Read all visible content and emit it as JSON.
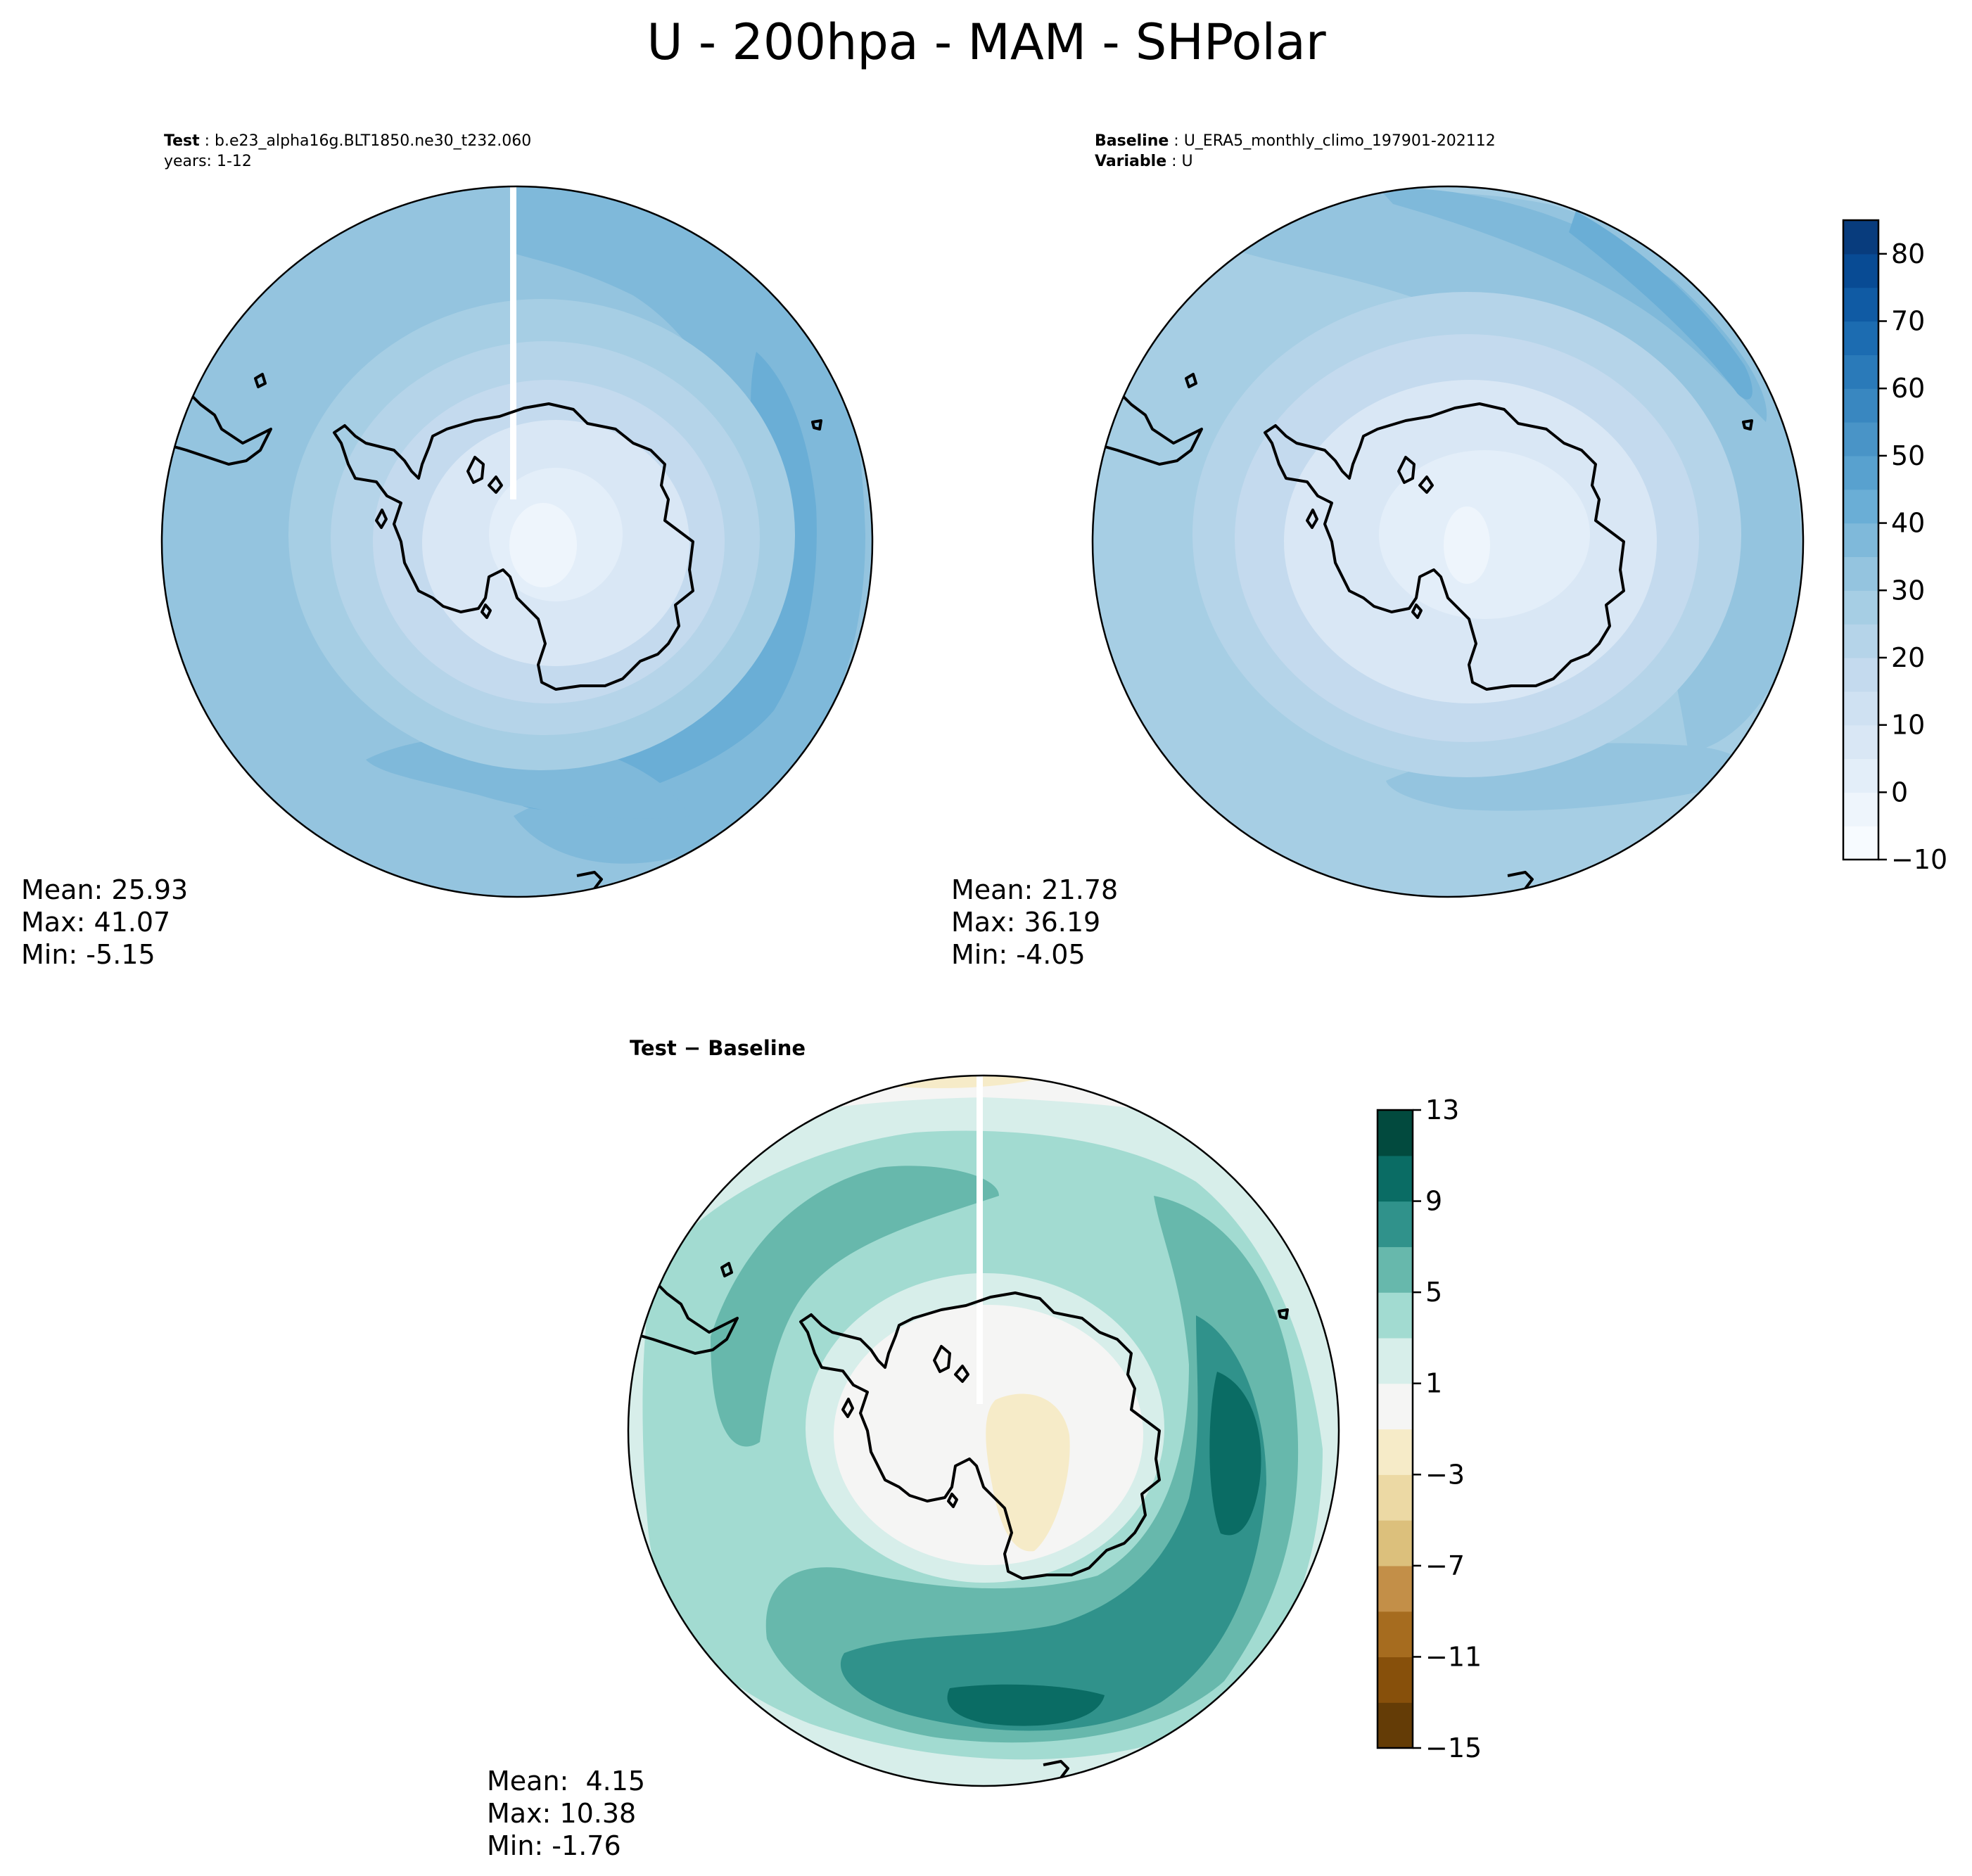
{
  "suptitle": "U - 200hpa - MAM - SHPolar",
  "test_panel": {
    "label_key": "Test",
    "case": "b.e23_alpha16g.BLT1850.ne30_t232.060",
    "years": "years: 1-12",
    "stats": {
      "mean": "Mean: 25.93",
      "max": "Max: 41.07",
      "min": "Min: -5.15"
    }
  },
  "baseline_panel": {
    "label_key": "Baseline",
    "case": "U_ERA5_monthly_climo_197901-202112",
    "variable_key": "Variable",
    "variable": "U",
    "stats": {
      "mean": "Mean: 21.78",
      "max": "Max: 36.19",
      "min": "Min: -4.05"
    }
  },
  "diff_panel": {
    "title": "Test − Baseline",
    "stats": {
      "mean": "Mean:  4.15",
      "max": "Max: 10.38",
      "min": "Min: -1.76"
    }
  },
  "chart_data": [
    {
      "type": "heatmap",
      "name": "test",
      "projection": "south-polar-stereographic",
      "colormap": "Blues",
      "vmin": -10,
      "vmax": 85,
      "level_step": 5,
      "mean": 25.93,
      "max": 41.07,
      "min": -5.15
    },
    {
      "type": "heatmap",
      "name": "baseline",
      "projection": "south-polar-stereographic",
      "colormap": "Blues",
      "vmin": -10,
      "vmax": 85,
      "level_step": 5,
      "mean": 21.78,
      "max": 36.19,
      "min": -4.05
    },
    {
      "type": "heatmap",
      "name": "difference",
      "projection": "south-polar-stereographic",
      "colormap": "BrBG",
      "vmin": -15,
      "vmax": 13,
      "level_step": 2,
      "mean": 4.15,
      "max": 10.38,
      "min": -1.76
    }
  ],
  "colorbar_main": {
    "ticks": [
      "−10",
      "0",
      "10",
      "20",
      "30",
      "40",
      "50",
      "60",
      "70",
      "80"
    ],
    "tick_values": [
      -10,
      0,
      10,
      20,
      30,
      40,
      50,
      60,
      70,
      80
    ],
    "min": -10,
    "max": 85,
    "colors": [
      "#f7fbff",
      "#eef5fc",
      "#e3eef9",
      "#d9e7f5",
      "#cfe1f2",
      "#c4daee",
      "#b5d4e9",
      "#a6cee4",
      "#94c4df",
      "#7fb9da",
      "#6aaed6",
      "#58a1cf",
      "#4994c7",
      "#3987c0",
      "#2a7ab9",
      "#1c6cb1",
      "#105ba4",
      "#084b94",
      "#083c7d"
    ]
  },
  "colorbar_diff": {
    "ticks": [
      "−15",
      "−11",
      "−7",
      "−3",
      "1",
      "5",
      "9",
      "13"
    ],
    "tick_values": [
      -15,
      -11,
      -7,
      -3,
      1,
      5,
      9,
      13
    ],
    "min": -15,
    "max": 13,
    "colors": [
      "#643c06",
      "#87500b",
      "#a66c1f",
      "#c38f48",
      "#dcc07c",
      "#ecd9a4",
      "#f6ebc8",
      "#f5f5f4",
      "#d7eeea",
      "#a2dbd1",
      "#67b8ac",
      "#30928b",
      "#0a6c64",
      "#024a3e"
    ]
  },
  "colors": {
    "continent_outline": "#000000",
    "missing_stripe": "#ffffff"
  }
}
